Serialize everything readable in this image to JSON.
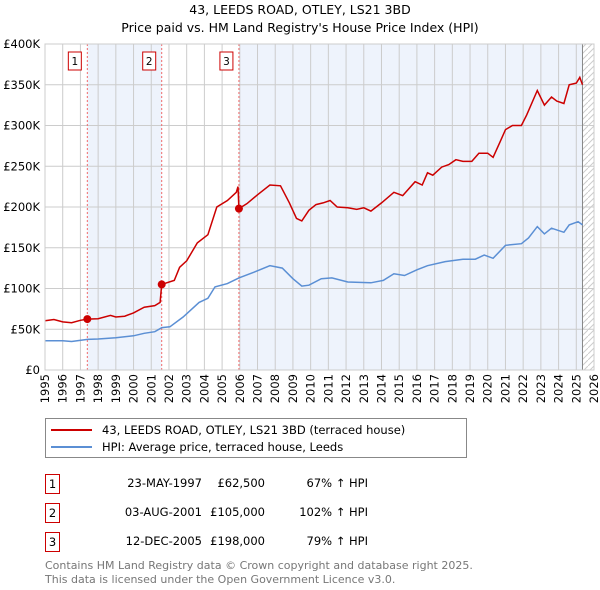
{
  "title_line1": "43, LEEDS ROAD, OTLEY, LS21 3BD",
  "title_line2": "Price paid vs. HM Land Registry's House Price Index (HPI)",
  "colors": {
    "property": "#cc0000",
    "hpi": "#5b8fd4",
    "shade": "#eef3fc",
    "grid": "#cccccc"
  },
  "chart_data": {
    "type": "line",
    "title": "Price paid vs. HM Land Registry's House Price Index (HPI)",
    "xlim": [
      1995,
      2026
    ],
    "ylim": [
      0,
      400000
    ],
    "grid": true,
    "legend_position": "bottom",
    "x_ticks": [
      "1995",
      "1996",
      "1997",
      "1998",
      "1999",
      "2000",
      "2001",
      "2002",
      "2003",
      "2004",
      "2005",
      "2006",
      "2007",
      "2008",
      "2009",
      "2010",
      "2011",
      "2012",
      "2013",
      "2014",
      "2015",
      "2016",
      "2017",
      "2018",
      "2019",
      "2020",
      "2021",
      "2022",
      "2023",
      "2024",
      "2025",
      "2026"
    ],
    "y_ticks": [
      {
        "v": 0,
        "label": "£0"
      },
      {
        "v": 50000,
        "label": "£50K"
      },
      {
        "v": 100000,
        "label": "£100K"
      },
      {
        "v": 150000,
        "label": "£150K"
      },
      {
        "v": 200000,
        "label": "£200K"
      },
      {
        "v": 250000,
        "label": "£250K"
      },
      {
        "v": 300000,
        "label": "£300K"
      },
      {
        "v": 350000,
        "label": "£350K"
      },
      {
        "v": 400000,
        "label": "£400K"
      }
    ],
    "data_end_year": 2025.35,
    "series": [
      {
        "name": "43, LEEDS ROAD, OTLEY, LS21 3BD (terraced house)",
        "color": "#cc0000",
        "points": [
          [
            1995,
            60500
          ],
          [
            1995.5,
            62000
          ],
          [
            1996,
            59000
          ],
          [
            1996.5,
            58000
          ],
          [
            1997,
            61000
          ],
          [
            1997.39,
            62500
          ],
          [
            1998,
            63000
          ],
          [
            1998.7,
            67000
          ],
          [
            1999,
            65000
          ],
          [
            1999.5,
            66000
          ],
          [
            2000,
            70000
          ],
          [
            2000.6,
            77000
          ],
          [
            2001.2,
            79000
          ],
          [
            2001.5,
            83000
          ],
          [
            2001.59,
            105000
          ],
          [
            2002.3,
            110000
          ],
          [
            2002.6,
            126000
          ],
          [
            2003,
            134000
          ],
          [
            2003.6,
            156000
          ],
          [
            2004.2,
            166000
          ],
          [
            2004.7,
            200000
          ],
          [
            2005.3,
            208000
          ],
          [
            2005.8,
            218000
          ],
          [
            2005.9,
            225000
          ],
          [
            2005.95,
            198000
          ],
          [
            2006.4,
            204000
          ],
          [
            2007,
            215000
          ],
          [
            2007.7,
            227000
          ],
          [
            2008.3,
            226000
          ],
          [
            2008.8,
            205000
          ],
          [
            2009.2,
            186000
          ],
          [
            2009.5,
            183000
          ],
          [
            2009.9,
            196000
          ],
          [
            2010.3,
            203000
          ],
          [
            2010.7,
            205000
          ],
          [
            2011.1,
            208000
          ],
          [
            2011.5,
            200000
          ],
          [
            2012.1,
            199000
          ],
          [
            2012.6,
            197000
          ],
          [
            2013,
            199000
          ],
          [
            2013.4,
            195000
          ],
          [
            2014,
            205000
          ],
          [
            2014.7,
            218000
          ],
          [
            2015.2,
            214000
          ],
          [
            2015.9,
            231000
          ],
          [
            2016.3,
            227000
          ],
          [
            2016.6,
            242000
          ],
          [
            2016.9,
            239000
          ],
          [
            2017.4,
            249000
          ],
          [
            2017.8,
            252000
          ],
          [
            2018.2,
            258000
          ],
          [
            2018.6,
            256000
          ],
          [
            2019.1,
            256000
          ],
          [
            2019.5,
            266000
          ],
          [
            2020,
            266000
          ],
          [
            2020.3,
            261000
          ],
          [
            2020.7,
            280000
          ],
          [
            2021,
            295000
          ],
          [
            2021.4,
            300000
          ],
          [
            2021.9,
            300000
          ],
          [
            2022.2,
            313000
          ],
          [
            2022.8,
            343000
          ],
          [
            2023.2,
            325000
          ],
          [
            2023.6,
            335000
          ],
          [
            2023.9,
            330000
          ],
          [
            2024.3,
            327000
          ],
          [
            2024.6,
            350000
          ],
          [
            2025.0,
            352000
          ],
          [
            2025.2,
            359000
          ],
          [
            2025.35,
            350000
          ]
        ]
      },
      {
        "name": "HPI: Average price, terraced house, Leeds",
        "color": "#5b8fd4",
        "points": [
          [
            1995,
            36000
          ],
          [
            1996,
            36000
          ],
          [
            1996.5,
            35000
          ],
          [
            1997.4,
            37500
          ],
          [
            1998,
            38000
          ],
          [
            1999,
            39500
          ],
          [
            2000,
            42000
          ],
          [
            2000.6,
            45000
          ],
          [
            2001.2,
            47000
          ],
          [
            2001.6,
            52000
          ],
          [
            2002.05,
            53000
          ],
          [
            2002.8,
            65000
          ],
          [
            2003.7,
            83000
          ],
          [
            2004.2,
            88000
          ],
          [
            2004.6,
            102000
          ],
          [
            2005.3,
            106000
          ],
          [
            2005.95,
            113000
          ],
          [
            2006.8,
            120000
          ],
          [
            2007.7,
            128000
          ],
          [
            2008.4,
            125000
          ],
          [
            2009.0,
            112000
          ],
          [
            2009.5,
            103000
          ],
          [
            2009.9,
            104000
          ],
          [
            2010.6,
            112000
          ],
          [
            2011.2,
            113000
          ],
          [
            2012.1,
            108000
          ],
          [
            2013.4,
            107000
          ],
          [
            2014.1,
            110000
          ],
          [
            2014.7,
            118000
          ],
          [
            2015.3,
            116000
          ],
          [
            2016,
            123000
          ],
          [
            2016.6,
            128000
          ],
          [
            2017.6,
            133000
          ],
          [
            2018.6,
            136000
          ],
          [
            2019.3,
            136000
          ],
          [
            2019.8,
            141000
          ],
          [
            2020.3,
            137000
          ],
          [
            2021,
            153000
          ],
          [
            2021.9,
            155000
          ],
          [
            2022.3,
            162000
          ],
          [
            2022.8,
            176000
          ],
          [
            2023.2,
            167000
          ],
          [
            2023.6,
            174000
          ],
          [
            2024.3,
            169000
          ],
          [
            2024.6,
            178000
          ],
          [
            2025.1,
            182000
          ],
          [
            2025.35,
            178000
          ]
        ]
      }
    ],
    "sales": [
      {
        "n": "1",
        "year": 1997.39,
        "value": 62500
      },
      {
        "n": "2",
        "year": 2001.59,
        "value": 105000
      },
      {
        "n": "3",
        "year": 2005.95,
        "value": 198000
      }
    ]
  },
  "legend": {
    "property": "43, LEEDS ROAD, OTLEY, LS21 3BD (terraced house)",
    "hpi": "HPI: Average price, terraced house, Leeds"
  },
  "sales_table": [
    {
      "n": "1",
      "date": "23-MAY-1997",
      "price": "£62,500",
      "hpi": "67% ↑ HPI"
    },
    {
      "n": "2",
      "date": "03-AUG-2001",
      "price": "£105,000",
      "hpi": "102% ↑ HPI"
    },
    {
      "n": "3",
      "date": "12-DEC-2005",
      "price": "£198,000",
      "hpi": "79% ↑ HPI"
    }
  ],
  "footer": {
    "line1": "Contains HM Land Registry data © Crown copyright and database right 2025.",
    "line2": "This data is licensed under the Open Government Licence v3.0."
  }
}
